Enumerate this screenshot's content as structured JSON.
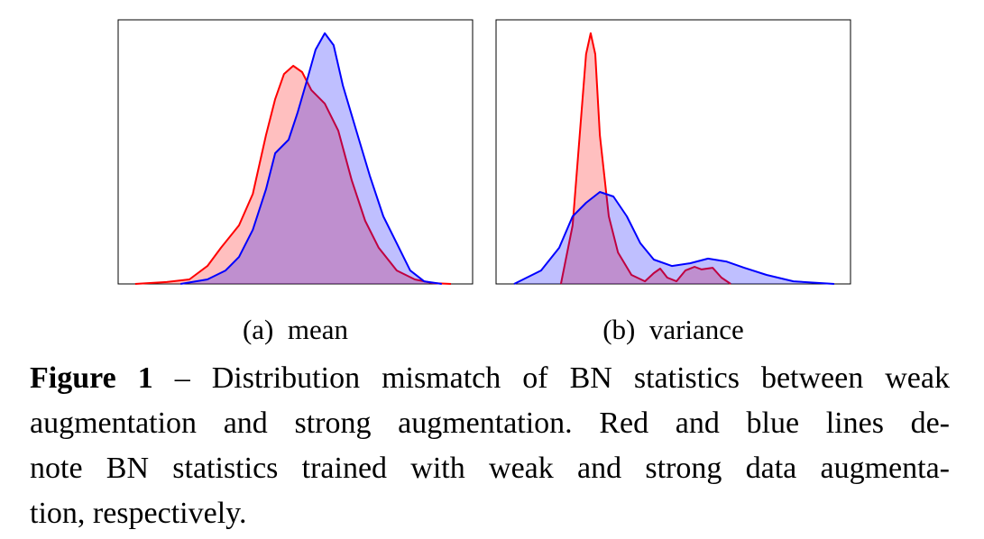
{
  "chart_data": [
    {
      "type": "area",
      "title": "(a)  mean",
      "xlim": [
        0,
        100
      ],
      "ylim": [
        0,
        100
      ],
      "series": [
        {
          "color": "#ff0000",
          "x": [
            4.8,
            13.7,
            20.1,
            25.2,
            29,
            34.1,
            38,
            41.7,
            44.3,
            46.8,
            49.4,
            51.9,
            54.5,
            58.3,
            62.1,
            65.9,
            69.7,
            73.5,
            78.6,
            83.7,
            88.8,
            93.9
          ],
          "values": [
            0,
            0.7,
            1.7,
            6.8,
            13.7,
            22.2,
            34.1,
            56.3,
            70,
            79.5,
            82.6,
            80.2,
            73.4,
            68.3,
            58,
            39.2,
            23.9,
            13.7,
            5.1,
            1.7,
            0.3,
            0
          ]
        },
        {
          "color": "#0000ff",
          "x": [
            17.6,
            25.2,
            30.3,
            34.1,
            38,
            41.7,
            44.3,
            48.1,
            50.6,
            53.2,
            55.7,
            58.3,
            60.8,
            63.4,
            67.2,
            71,
            74.8,
            78.6,
            82.4,
            86.3,
            91.3
          ],
          "values": [
            0,
            1.7,
            5.1,
            10.2,
            20.5,
            35.8,
            49.5,
            54.6,
            64.8,
            76.8,
            88.7,
            94.9,
            90.4,
            75.1,
            58,
            41,
            25.6,
            15.4,
            5.1,
            1,
            0
          ]
        }
      ]
    },
    {
      "type": "area",
      "title": "(b)  variance",
      "xlim": [
        0,
        100
      ],
      "ylim": [
        0,
        100
      ],
      "series": [
        {
          "color": "#ff0000",
          "x": [
            18.3,
            21.6,
            24.2,
            25.4,
            26.7,
            28,
            29.3,
            31.8,
            34.4,
            38.2,
            42,
            44.5,
            46.3,
            48.3,
            50.9,
            53.4,
            56,
            58,
            61.1,
            63.6,
            66.2
          ],
          "values": [
            0,
            22.2,
            66.6,
            87,
            94.9,
            87,
            56.3,
            25.6,
            11.9,
            3.4,
            1,
            4.1,
            5.8,
            2.4,
            1,
            5.1,
            6.5,
            5.5,
            6.1,
            2.4,
            0
          ]
        },
        {
          "color": "#0000ff",
          "x": [
            5.1,
            12.7,
            17.8,
            21.6,
            25.4,
            29.3,
            33.1,
            36.9,
            40.7,
            44.5,
            49.6,
            54.7,
            59.8,
            64.9,
            70,
            76.3,
            83.9,
            95.4
          ],
          "values": [
            0,
            5.1,
            13.7,
            25.6,
            30.7,
            34.8,
            33.1,
            25.6,
            15.4,
            9.2,
            6.8,
            7.8,
            9.6,
            8.5,
            6.1,
            3.4,
            1,
            0
          ]
        }
      ]
    }
  ],
  "caption": {
    "label": "Figure 1",
    "lines": [
      "– Distribution mismatch of BN statistics between weak",
      "augmentation and strong augmentation.  Red and blue lines de-",
      "note BN statistics trained with weak and strong data augmenta-",
      "tion, respectively."
    ]
  }
}
